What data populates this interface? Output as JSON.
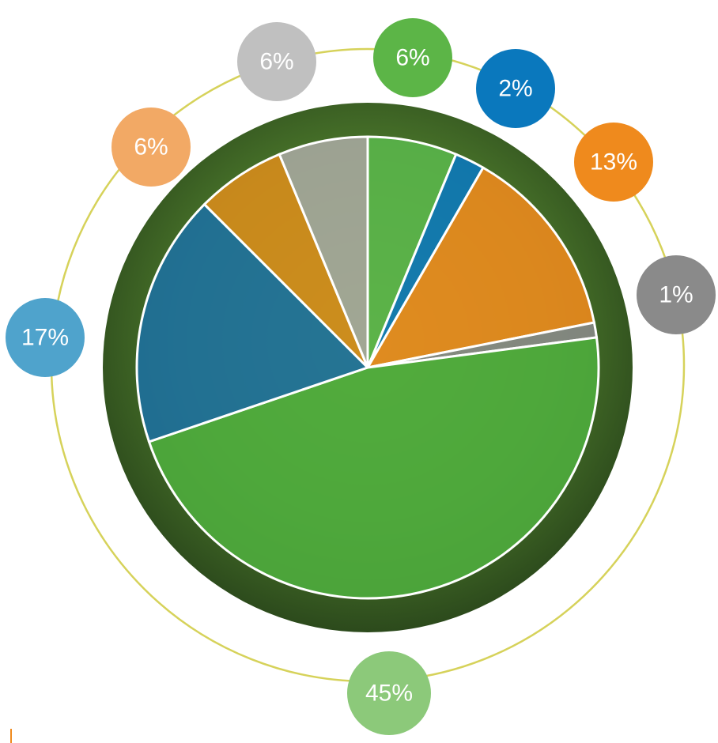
{
  "chart_data": {
    "type": "pie",
    "values": [
      6,
      2,
      13,
      1,
      45,
      17,
      6,
      6
    ],
    "value_labels": [
      "6%",
      "2%",
      "13%",
      "1%",
      "45%",
      "17%",
      "6%",
      "6%"
    ],
    "colors": [
      "#5ab64b",
      "#0a78bd",
      "#ef8a1d",
      "#8a8a8a",
      "#4fae3e",
      "#1d6fa0",
      "#d98c1a",
      "#a9a9a0"
    ],
    "label_colors": [
      "#5cb547",
      "#0a78bd",
      "#ef8a1d",
      "#8a8a8a",
      "#8cc97a",
      "#4fa3cc",
      "#f2a965",
      "#c0c0c0"
    ]
  }
}
